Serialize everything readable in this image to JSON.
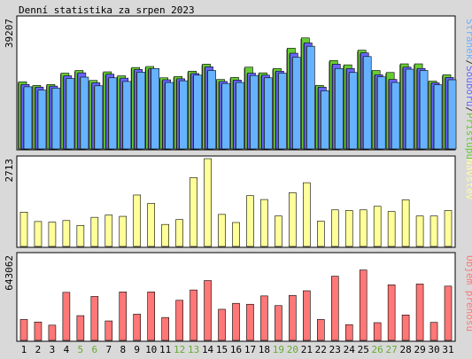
{
  "title": "Denní statistika za srpen 2023",
  "colors": {
    "background": "#d9d9d9",
    "plot_bg": "#ffffff",
    "hits": "#66cc33",
    "files": "#6666ff",
    "pages": "#66b2ff",
    "visits": "#ffff99",
    "kbytes": "#ff7777",
    "weekend_label": "#66aa33",
    "weekday_label": "#000000"
  },
  "chart_data": [
    {
      "type": "bar",
      "name": "requests",
      "ymax_label": "39207",
      "ylim": [
        0,
        39207
      ],
      "right_label_parts": [
        {
          "text": "Stránek",
          "color": "#66b2ff"
        },
        {
          "text": "/",
          "color": "#333333"
        },
        {
          "text": "Souborů",
          "color": "#6666ff"
        },
        {
          "text": "/",
          "color": "#333333"
        },
        {
          "text": "Přístupů",
          "color": "#66cc33"
        }
      ],
      "categories": [
        "1",
        "2",
        "3",
        "4",
        "5",
        "6",
        "7",
        "8",
        "9",
        "10",
        "11",
        "12",
        "13",
        "14",
        "15",
        "16",
        "17",
        "18",
        "19",
        "20",
        "21",
        "22",
        "23",
        "24",
        "25",
        "26",
        "27",
        "28",
        "29",
        "30",
        "31"
      ],
      "series": [
        {
          "name": "Přístupů",
          "color": "#66cc33",
          "values": [
            20200,
            19100,
            19400,
            22800,
            23600,
            20600,
            23200,
            22000,
            24500,
            24800,
            21400,
            21800,
            23400,
            25500,
            20900,
            21500,
            24600,
            22900,
            24200,
            30300,
            33400,
            19100,
            26600,
            25300,
            29700,
            23600,
            23000,
            25600,
            25600,
            20400,
            22300
          ]
        },
        {
          "name": "Souborů",
          "color": "#6666ff",
          "values": [
            19400,
            18600,
            18900,
            22000,
            22900,
            19900,
            22500,
            21300,
            23900,
            24100,
            20800,
            21100,
            22700,
            24700,
            20300,
            20700,
            22800,
            22200,
            23400,
            28800,
            31900,
            18600,
            25500,
            24200,
            28900,
            22300,
            20900,
            24600,
            24200,
            19900,
            21500
          ]
        },
        {
          "name": "Stránek",
          "color": "#66b2ff",
          "values": [
            18700,
            17700,
            18300,
            21200,
            21600,
            19000,
            21400,
            20300,
            23100,
            24200,
            20000,
            20500,
            22200,
            23600,
            19700,
            20000,
            22100,
            21400,
            22800,
            27600,
            30900,
            17500,
            24200,
            23000,
            27800,
            21700,
            20000,
            24000,
            23600,
            19300,
            20800
          ]
        }
      ]
    },
    {
      "type": "bar",
      "name": "visits",
      "ymax_label": "2713",
      "ylim": [
        0,
        2713
      ],
      "right_label_parts": [
        {
          "text": "Návštěv",
          "color": "#ffff99"
        }
      ],
      "categories": [
        "1",
        "2",
        "3",
        "4",
        "5",
        "6",
        "7",
        "8",
        "9",
        "10",
        "11",
        "12",
        "13",
        "14",
        "15",
        "16",
        "17",
        "18",
        "19",
        "20",
        "21",
        "22",
        "23",
        "24",
        "25",
        "26",
        "27",
        "28",
        "29",
        "30",
        "31"
      ],
      "series": [
        {
          "name": "Návštěv",
          "color": "#ffff99",
          "values": [
            1060,
            770,
            750,
            800,
            650,
            900,
            970,
            930,
            1590,
            1330,
            680,
            830,
            2130,
            2713,
            990,
            740,
            1570,
            1450,
            940,
            1660,
            1970,
            780,
            1130,
            1110,
            1130,
            1240,
            1080,
            1440,
            940,
            940,
            1110
          ]
        }
      ]
    },
    {
      "type": "bar",
      "name": "kbytes",
      "ymax_label": "643062",
      "ylim": [
        0,
        643062
      ],
      "right_label_parts": [
        {
          "text": "Objem přenosu",
          "color": "#ff7777"
        }
      ],
      "categories": [
        "1",
        "2",
        "3",
        "4",
        "5",
        "6",
        "7",
        "8",
        "9",
        "10",
        "11",
        "12",
        "13",
        "14",
        "15",
        "16",
        "17",
        "18",
        "19",
        "20",
        "21",
        "22",
        "23",
        "24",
        "25",
        "26",
        "27",
        "28",
        "29",
        "30",
        "31"
      ],
      "series": [
        {
          "name": "Objem přenosu",
          "color": "#ff7777",
          "values": [
            158000,
            139000,
            115000,
            363000,
            187000,
            332000,
            147000,
            366000,
            198000,
            366000,
            173000,
            303000,
            381000,
            452000,
            235000,
            280000,
            273000,
            336000,
            263000,
            340000,
            375000,
            158000,
            485000,
            119000,
            532000,
            134000,
            420000,
            192000,
            426000,
            136000,
            410000
          ]
        }
      ]
    }
  ],
  "weekend_days": [
    "5",
    "6",
    "12",
    "13",
    "19",
    "20",
    "26",
    "27"
  ]
}
